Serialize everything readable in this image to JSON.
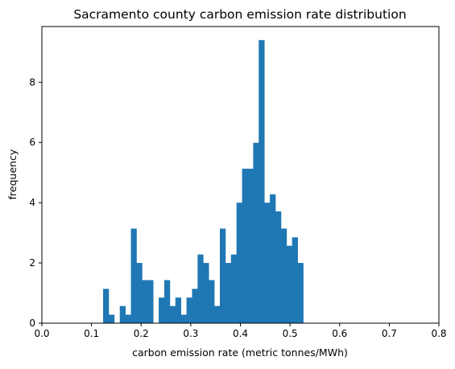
{
  "chart_data": {
    "type": "bar",
    "title": "Sacramento county carbon emission rate distribution",
    "xlabel": "carbon emission rate (metric tonnes/MWh)",
    "ylabel": "frequency",
    "xlim": [
      0,
      0.8
    ],
    "ylim": [
      0,
      9.85
    ],
    "xticks": [
      "0.0",
      "0.1",
      "0.2",
      "0.3",
      "0.4",
      "0.5",
      "0.6",
      "0.7",
      "0.8"
    ],
    "yticks": [
      "0",
      "2",
      "4",
      "6",
      "8"
    ],
    "grid": false,
    "bar_color": "#1f77b4",
    "bin_width": 0.0112,
    "bins": [
      {
        "x": 0.1234,
        "y": 1.14
      },
      {
        "x": 0.1346,
        "y": 0.28
      },
      {
        "x": 0.1458,
        "y": 0.0
      },
      {
        "x": 0.157,
        "y": 0.57
      },
      {
        "x": 0.1682,
        "y": 0.28
      },
      {
        "x": 0.1794,
        "y": 3.14
      },
      {
        "x": 0.1906,
        "y": 2.0
      },
      {
        "x": 0.2018,
        "y": 1.43
      },
      {
        "x": 0.213,
        "y": 1.43
      },
      {
        "x": 0.2242,
        "y": 0.0
      },
      {
        "x": 0.2354,
        "y": 0.85
      },
      {
        "x": 0.2466,
        "y": 1.43
      },
      {
        "x": 0.2578,
        "y": 0.57
      },
      {
        "x": 0.269,
        "y": 0.85
      },
      {
        "x": 0.2802,
        "y": 0.28
      },
      {
        "x": 0.2914,
        "y": 0.85
      },
      {
        "x": 0.3026,
        "y": 1.14
      },
      {
        "x": 0.3138,
        "y": 2.28
      },
      {
        "x": 0.325,
        "y": 2.0
      },
      {
        "x": 0.3362,
        "y": 1.43
      },
      {
        "x": 0.3474,
        "y": 0.57
      },
      {
        "x": 0.3586,
        "y": 3.14
      },
      {
        "x": 0.3698,
        "y": 2.0
      },
      {
        "x": 0.381,
        "y": 2.28
      },
      {
        "x": 0.3922,
        "y": 4.0
      },
      {
        "x": 0.4034,
        "y": 5.13
      },
      {
        "x": 0.4146,
        "y": 5.13
      },
      {
        "x": 0.4258,
        "y": 5.99
      },
      {
        "x": 0.437,
        "y": 9.4
      },
      {
        "x": 0.4482,
        "y": 4.0
      },
      {
        "x": 0.4594,
        "y": 4.28
      },
      {
        "x": 0.4706,
        "y": 3.71
      },
      {
        "x": 0.4818,
        "y": 3.14
      },
      {
        "x": 0.493,
        "y": 2.57
      },
      {
        "x": 0.5042,
        "y": 2.85
      },
      {
        "x": 0.5154,
        "y": 2.0
      }
    ]
  }
}
